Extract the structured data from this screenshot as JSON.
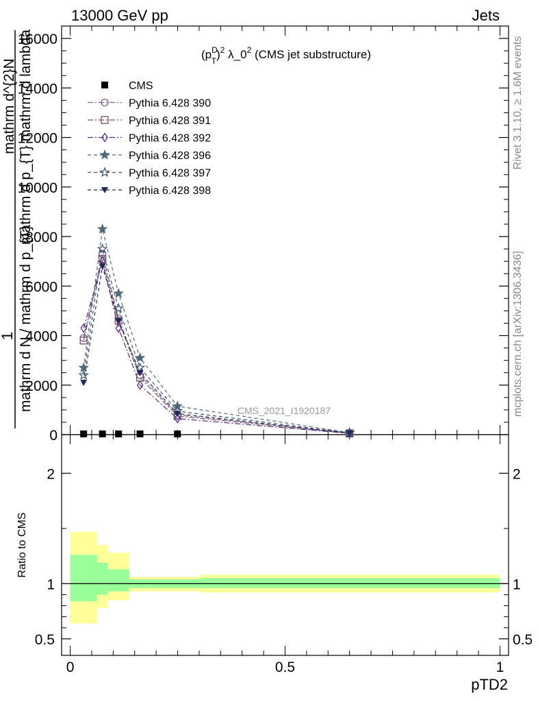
{
  "header": {
    "left": "13000 GeV pp",
    "right": "Jets"
  },
  "side_texts": {
    "rivet": "Rivet 3.1.10, ≥ 1.6M events",
    "mcplots": "mcplots.cern.ch [arXiv:1306.3436]"
  },
  "watermark": "CMS_2021_I1920187",
  "chart_data": [
    {
      "type": "line",
      "title": "(p_T^D)^2 λ_0^2 (CMS jet substructure)",
      "title_parts": {
        "a": "(p",
        "sup1": "D",
        "sub1": "T",
        "b": ")",
        "sup2": "2",
        "c": " λ_0",
        "sup3": "2",
        "d": " (CMS jet substructure)"
      },
      "ylabel_lines": [
        "mathrm d^{2}N",
        "mathrm d p_{T} mathrm d lambda",
        "1",
        "mathrm d N / mathrm d p_{T}"
      ],
      "ylim": [
        0,
        16500
      ],
      "xlim": [
        -0.02,
        1.02
      ],
      "yticks": [
        0,
        2000,
        4000,
        6000,
        8000,
        10000,
        12000,
        14000,
        16000
      ],
      "ytick_labels": [
        "0",
        "2000",
        "4000",
        "6000",
        "8000",
        "10000",
        "12000",
        "14000",
        "16000"
      ],
      "legend_position": "top-left",
      "x": [
        0.03125,
        0.075,
        0.1125,
        0.1625,
        0.2495,
        0.65
      ],
      "series": [
        {
          "name": "CMS",
          "marker": "square-filled",
          "color": "#000000",
          "values": [
            30,
            30,
            30,
            30,
            30,
            30
          ]
        },
        {
          "name": "Pythia 6.428 390",
          "marker": "circle-open",
          "color": "#7d5a8f",
          "dash": "dashdot",
          "values": [
            3900,
            7300,
            4700,
            2400,
            800,
            60
          ]
        },
        {
          "name": "Pythia 6.428 391",
          "marker": "square-open",
          "color": "#7a4f6a",
          "dash": "dashdot",
          "values": [
            3800,
            7100,
            4600,
            2300,
            750,
            55
          ]
        },
        {
          "name": "Pythia 6.428 392",
          "marker": "diamond-open",
          "color": "#4f2c83",
          "dash": "dashdot",
          "values": [
            4300,
            7000,
            4300,
            2000,
            650,
            50
          ]
        },
        {
          "name": "Pythia 6.428 396",
          "marker": "star-filled",
          "color": "#4e6a78",
          "dash": "dashed",
          "values": [
            2700,
            8300,
            5700,
            3100,
            1150,
            80
          ]
        },
        {
          "name": "Pythia 6.428 397",
          "marker": "star-open",
          "color": "#39536e",
          "dash": "dashed",
          "values": [
            2400,
            7500,
            5100,
            2700,
            950,
            70
          ]
        },
        {
          "name": "Pythia 6.428 398",
          "marker": "triangle-down-filled",
          "color": "#1d2a55",
          "dash": "dashed",
          "values": [
            2100,
            6800,
            4600,
            2500,
            850,
            60
          ]
        }
      ]
    },
    {
      "type": "area",
      "ylabel": "Ratio to CMS",
      "xlabel": "pTD2",
      "ylim": [
        0.35,
        2.35
      ],
      "xlim": [
        -0.02,
        1.02
      ],
      "yticks": [
        0.5,
        1,
        2
      ],
      "ytick_labels": [
        "0.5",
        "1",
        "2"
      ],
      "xticks": [
        0,
        0.5,
        1
      ],
      "xtick_labels": [
        "0",
        "0.5",
        "1"
      ],
      "bins": [
        {
          "x0": 0.0,
          "x1": 0.0625,
          "yellow": [
            0.64,
            1.47
          ],
          "green": [
            0.84,
            1.26
          ]
        },
        {
          "x0": 0.0625,
          "x1": 0.0875,
          "yellow": [
            0.78,
            1.35
          ],
          "green": [
            0.9,
            1.19
          ]
        },
        {
          "x0": 0.0875,
          "x1": 0.1375,
          "yellow": [
            0.85,
            1.28
          ],
          "green": [
            0.93,
            1.13
          ]
        },
        {
          "x0": 0.1375,
          "x1": 0.1875,
          "yellow": [
            0.93,
            1.06
          ],
          "green": [
            0.96,
            1.04
          ]
        },
        {
          "x0": 0.1875,
          "x1": 0.3,
          "yellow": [
            0.93,
            1.06
          ],
          "green": [
            0.96,
            1.04
          ]
        },
        {
          "x0": 0.3,
          "x1": 1.0,
          "yellow": [
            0.92,
            1.08
          ],
          "green": [
            0.96,
            1.05
          ]
        }
      ]
    }
  ]
}
